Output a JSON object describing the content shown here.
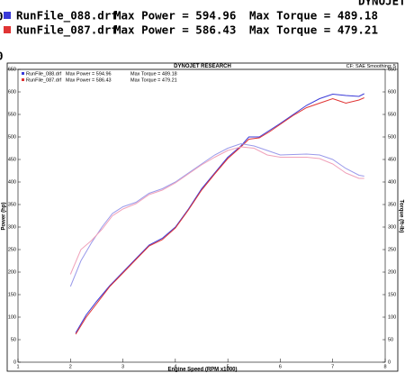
{
  "header": {
    "brand": "DYNOJET R",
    "edge_top": "0",
    "edge_bottom": "0"
  },
  "legend": [
    {
      "file": "RunFile_088.drf",
      "power": "Max Power = 594.96",
      "torque": "Max Torque = 489.18"
    },
    {
      "file": "RunFile_087.drf",
      "power": "Max Power = 586.43",
      "torque": "Max Torque = 479.21"
    }
  ],
  "chart_data": {
    "type": "line",
    "title": "DYNOJET RESEARCH",
    "subtitle": "CF: SAE  Smoothing: 5",
    "x_label": "Engine Speed (RPM x1000)",
    "y_label": "Power (hp)",
    "y2_label": "Torque (ft-lb)",
    "xlim": [
      1,
      8
    ],
    "xticks": [
      1,
      2,
      3,
      4,
      5,
      6,
      7,
      8
    ],
    "ylim": [
      0,
      650
    ],
    "yticks": [
      0,
      50,
      100,
      150,
      200,
      250,
      300,
      350,
      400,
      450,
      500,
      550,
      600,
      650
    ],
    "y2lim": [
      0,
      650
    ],
    "y2ticks": [
      0,
      50,
      100,
      150,
      200,
      250,
      300,
      350,
      400,
      450,
      500,
      550,
      600,
      650
    ],
    "series": [
      {
        "color": "#3a3ad8",
        "x": [
          2.1,
          2.3,
          2.5,
          2.75,
          3.0,
          3.25,
          3.5,
          3.75,
          4.0,
          4.25,
          4.5,
          4.75,
          5.0,
          5.25,
          5.4,
          5.6,
          5.8,
          6.0,
          6.25,
          6.5,
          6.75,
          7.0,
          7.25,
          7.5,
          7.6
        ],
        "values": [
          65,
          105,
          135,
          170,
          200,
          230,
          260,
          275,
          300,
          340,
          385,
          420,
          455,
          480,
          500,
          500,
          515,
          530,
          550,
          570,
          585,
          595,
          592,
          590,
          596
        ]
      },
      {
        "color": "#e03434",
        "x": [
          2.1,
          2.3,
          2.5,
          2.75,
          3.0,
          3.25,
          3.5,
          3.75,
          4.0,
          4.25,
          4.5,
          4.75,
          5.0,
          5.25,
          5.4,
          5.6,
          5.8,
          6.0,
          6.25,
          6.5,
          6.75,
          7.0,
          7.25,
          7.5,
          7.6
        ],
        "values": [
          62,
          100,
          130,
          168,
          198,
          228,
          258,
          272,
          298,
          338,
          382,
          418,
          452,
          478,
          495,
          498,
          512,
          528,
          548,
          565,
          575,
          585,
          575,
          582,
          587
        ]
      },
      {
        "color": "#9a9aea",
        "axis": "y2",
        "x": [
          2.0,
          2.2,
          2.4,
          2.6,
          2.8,
          3.0,
          3.25,
          3.5,
          3.75,
          4.0,
          4.25,
          4.5,
          4.75,
          5.0,
          5.25,
          5.5,
          5.75,
          6.0,
          6.5,
          6.75,
          7.0,
          7.25,
          7.5,
          7.6
        ],
        "values": [
          168,
          225,
          265,
          300,
          330,
          345,
          355,
          375,
          385,
          400,
          420,
          440,
          460,
          475,
          485,
          480,
          470,
          460,
          462,
          460,
          450,
          430,
          415,
          413
        ]
      },
      {
        "color": "#f0a2ba",
        "axis": "y2",
        "x": [
          2.0,
          2.2,
          2.4,
          2.6,
          2.8,
          3.0,
          3.25,
          3.5,
          3.75,
          4.0,
          4.25,
          4.5,
          4.75,
          5.0,
          5.25,
          5.5,
          5.75,
          6.0,
          6.5,
          6.75,
          7.0,
          7.25,
          7.5,
          7.6
        ],
        "values": [
          195,
          250,
          270,
          295,
          325,
          340,
          352,
          372,
          382,
          398,
          418,
          438,
          455,
          470,
          478,
          475,
          460,
          455,
          455,
          452,
          440,
          420,
          408,
          408
        ]
      }
    ]
  }
}
